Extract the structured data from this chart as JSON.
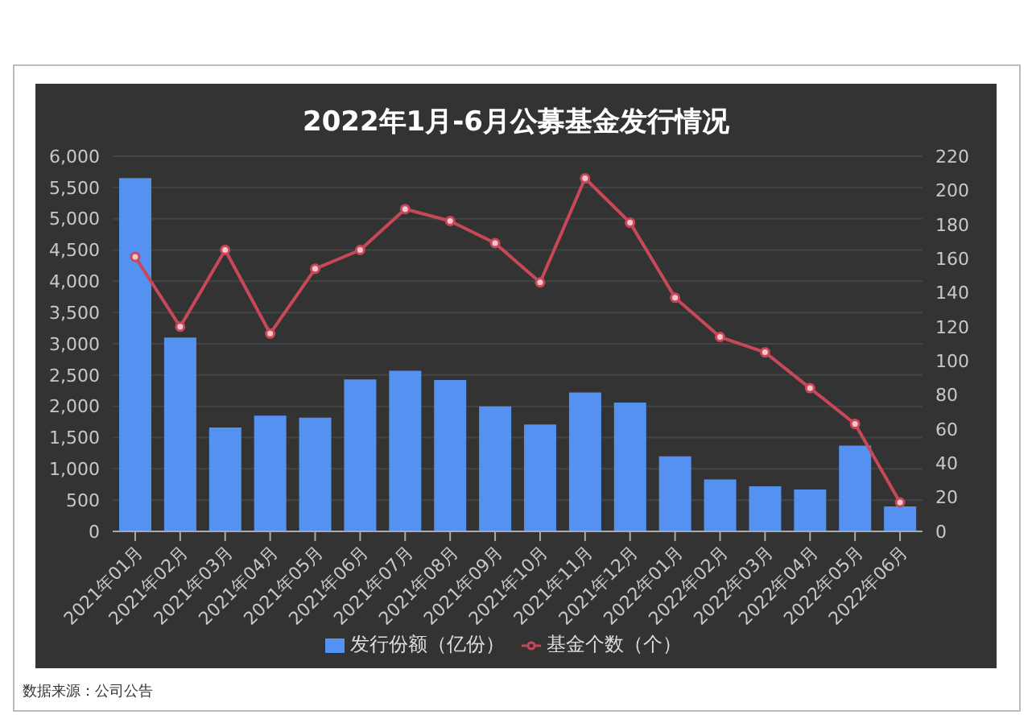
{
  "chart_data": {
    "type": "bar",
    "title": "2022年1月-6月公募基金发行情况",
    "categories": [
      "2021年01月",
      "2021年02月",
      "2021年03月",
      "2021年04月",
      "2021年05月",
      "2021年06月",
      "2021年07月",
      "2021年08月",
      "2021年09月",
      "2021年10月",
      "2021年11月",
      "2021年12月",
      "2022年01月",
      "2022年02月",
      "2022年03月",
      "2022年04月",
      "2022年05月",
      "2022年06月"
    ],
    "series": [
      {
        "name": "发行份额（亿份）",
        "color": "#5591f0",
        "values": [
          5650,
          3100,
          1660,
          1850,
          1820,
          2430,
          2570,
          2420,
          2000,
          1710,
          2220,
          2060,
          1200,
          830,
          720,
          670,
          1370,
          400
        ]
      },
      {
        "name": "基金个数（个）",
        "type": "line",
        "axis": "y2",
        "color": "#c8485a",
        "values": [
          161,
          120,
          165,
          116,
          154,
          165,
          189,
          182,
          169,
          146,
          207,
          181,
          137,
          114,
          105,
          84,
          63,
          17
        ]
      }
    ],
    "ylim": [
      0,
      6000
    ],
    "yticks": [
      0,
      {
        "value": 500,
        "label": "500"
      },
      {
        "value": 1000,
        "label": "1,000"
      },
      {
        "value": 1500,
        "label": "1,500"
      },
      {
        "value": 2000,
        "label": "2,000"
      },
      {
        "value": 2500,
        "label": "2,500"
      },
      {
        "value": 3000,
        "label": "3,000"
      },
      {
        "value": 3500,
        "label": "3,500"
      },
      {
        "value": 4000,
        "label": "4,000"
      },
      {
        "value": 4500,
        "label": "4,500"
      },
      {
        "value": 5000,
        "label": "5,000"
      },
      {
        "value": 5500,
        "label": "5,500"
      },
      {
        "value": 6000,
        "label": "6,000"
      }
    ],
    "y2lim": [
      0,
      220
    ],
    "y2ticks": [
      0,
      20,
      40,
      60,
      80,
      100,
      120,
      140,
      160,
      180,
      200,
      220
    ],
    "grid": "y",
    "legend": "bottom",
    "marker": "circle",
    "line_style": "solid",
    "annotations": [
      "数据来源：公司公告"
    ]
  }
}
